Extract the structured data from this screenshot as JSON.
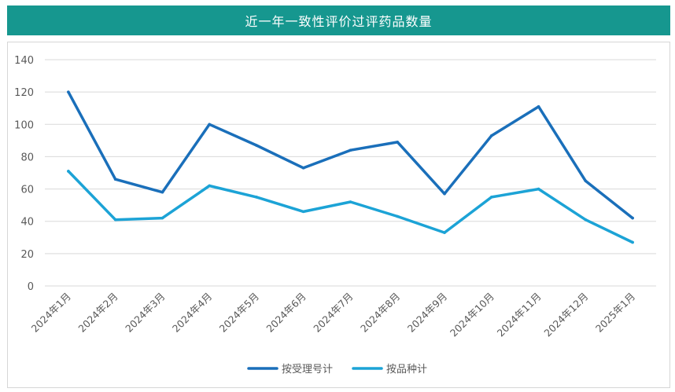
{
  "title": "近一年一致性评价过评药品数量",
  "colors": {
    "title_bg": "#16978f",
    "series_1": "#1a6fba",
    "series_2": "#1ca3d6",
    "grid": "#d9d9d9",
    "text": "#595959"
  },
  "chart_data": {
    "type": "line",
    "title": "近一年一致性评价过评药品数量",
    "x": [
      "2024年1月",
      "2024年2月",
      "2024年3月",
      "2024年4月",
      "2024年5月",
      "2024年6月",
      "2024年7月",
      "2024年8月",
      "2024年9月",
      "2024年10月",
      "2024年11月",
      "2024年12月",
      "2025年1月"
    ],
    "series": [
      {
        "name": "按受理号计",
        "color": "#1a6fba",
        "values": [
          120,
          66,
          58,
          100,
          87,
          73,
          84,
          89,
          57,
          93,
          111,
          65,
          42
        ]
      },
      {
        "name": "按品种计",
        "color": "#1ca3d6",
        "values": [
          71,
          41,
          42,
          62,
          55,
          46,
          52,
          43,
          33,
          55,
          60,
          41,
          27
        ]
      }
    ],
    "ylim": [
      0,
      140
    ],
    "yticks": [
      0,
      20,
      40,
      60,
      80,
      100,
      120,
      140
    ],
    "grid": true,
    "legend": "bottom"
  }
}
